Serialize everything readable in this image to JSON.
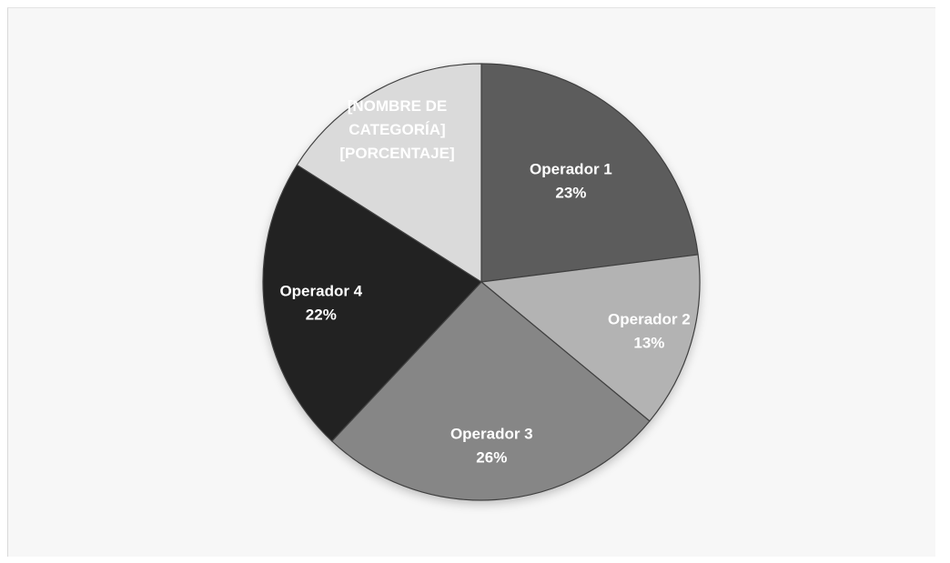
{
  "chart_data": {
    "type": "pie",
    "title": "",
    "slices": [
      {
        "category": "Operador 1",
        "percent_label": "23%",
        "value": 23,
        "color": "#5c5c5c",
        "label_color": "#ffffff"
      },
      {
        "category": "Operador 2",
        "percent_label": "13%",
        "value": 13,
        "color": "#b3b3b3",
        "label_color": "#ffffff"
      },
      {
        "category": "Operador 3",
        "percent_label": "26%",
        "value": 26,
        "color": "#868686",
        "label_color": "#ffffff"
      },
      {
        "category": "Operador 4",
        "percent_label": "22%",
        "value": 22,
        "color": "#202020",
        "label_color": "#ffffff"
      },
      {
        "category": "[NOMBRE DE CATEGORÍA]",
        "category_lines": [
          "[NOMBRE DE",
          "CATEGORÍA]"
        ],
        "percent_label": "[PORCENTAJE]",
        "value": 16,
        "color": "#dadada",
        "label_color": "#ffffff"
      }
    ],
    "start": "12 o'clock",
    "direction": "clockwise",
    "legend": "none",
    "slice_border_color": "#404040"
  }
}
